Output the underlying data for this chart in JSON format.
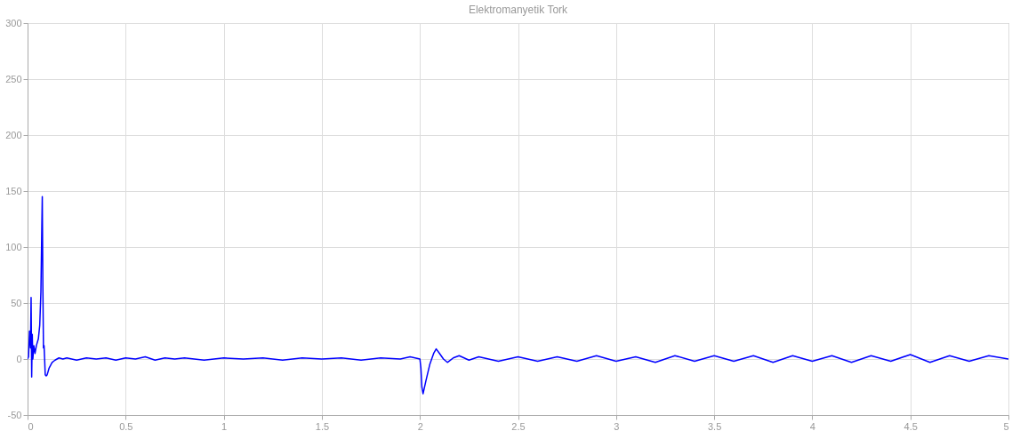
{
  "chart_data": {
    "type": "line",
    "title": "Elektromanyetik Tork",
    "x": [
      0,
      0.005,
      0.01,
      0.015,
      0.018,
      0.021,
      0.024,
      0.027,
      0.032,
      0.038,
      0.045,
      0.055,
      0.062,
      0.068,
      0.072,
      0.075,
      0.078,
      0.081,
      0.084,
      0.087,
      0.09,
      0.095,
      0.1,
      0.11,
      0.125,
      0.14,
      0.16,
      0.18,
      0.2,
      0.25,
      0.3,
      0.35,
      0.4,
      0.45,
      0.5,
      0.55,
      0.6,
      0.65,
      0.7,
      0.75,
      0.8,
      0.9,
      1.0,
      1.1,
      1.2,
      1.3,
      1.4,
      1.5,
      1.6,
      1.7,
      1.8,
      1.9,
      1.95,
      2.0,
      2.005,
      2.01,
      2.016,
      2.03,
      2.05,
      2.07,
      2.083,
      2.1,
      2.12,
      2.14,
      2.17,
      2.2,
      2.25,
      2.3,
      2.4,
      2.5,
      2.6,
      2.7,
      2.8,
      2.9,
      3.0,
      3.1,
      3.2,
      3.3,
      3.4,
      3.5,
      3.6,
      3.7,
      3.8,
      3.9,
      4.0,
      4.1,
      4.2,
      4.3,
      4.4,
      4.5,
      4.6,
      4.7,
      4.8,
      4.9,
      5.0
    ],
    "series": [
      {
        "color": "#0000ff",
        "values": [
          0,
          2,
          25,
          10,
          55,
          -16,
          22,
          0,
          12,
          5,
          12,
          18,
          30,
          60,
          110,
          145,
          65,
          10,
          12,
          0,
          -14,
          -15,
          -14,
          -8,
          -3,
          -1,
          1,
          0,
          1,
          -1,
          1,
          0,
          1,
          -1,
          1,
          0,
          2,
          -1,
          1,
          0,
          1,
          -1,
          1,
          0,
          1,
          -1,
          1,
          0,
          1,
          -1,
          1,
          0,
          2,
          0,
          -8,
          -25,
          -31,
          -20,
          -5,
          5,
          9,
          5,
          0,
          -3,
          1,
          3,
          -1,
          2,
          -2,
          2,
          -2,
          2,
          -2,
          3,
          -2,
          2,
          -3,
          3,
          -2,
          3,
          -2,
          3,
          -3,
          3,
          -2,
          3,
          -3,
          3,
          -2,
          4,
          -3,
          3,
          -2,
          3,
          0
        ]
      }
    ],
    "xlim": [
      0,
      5
    ],
    "xticks": [
      0,
      0.5,
      1,
      1.5,
      2,
      2.5,
      3,
      3.5,
      4,
      4.5,
      5
    ],
    "ylim": [
      -50,
      300
    ],
    "yticks": [
      -50,
      0,
      50,
      100,
      150,
      200,
      250,
      300
    ],
    "grid": true,
    "line_style": "solid",
    "marker": "none"
  }
}
